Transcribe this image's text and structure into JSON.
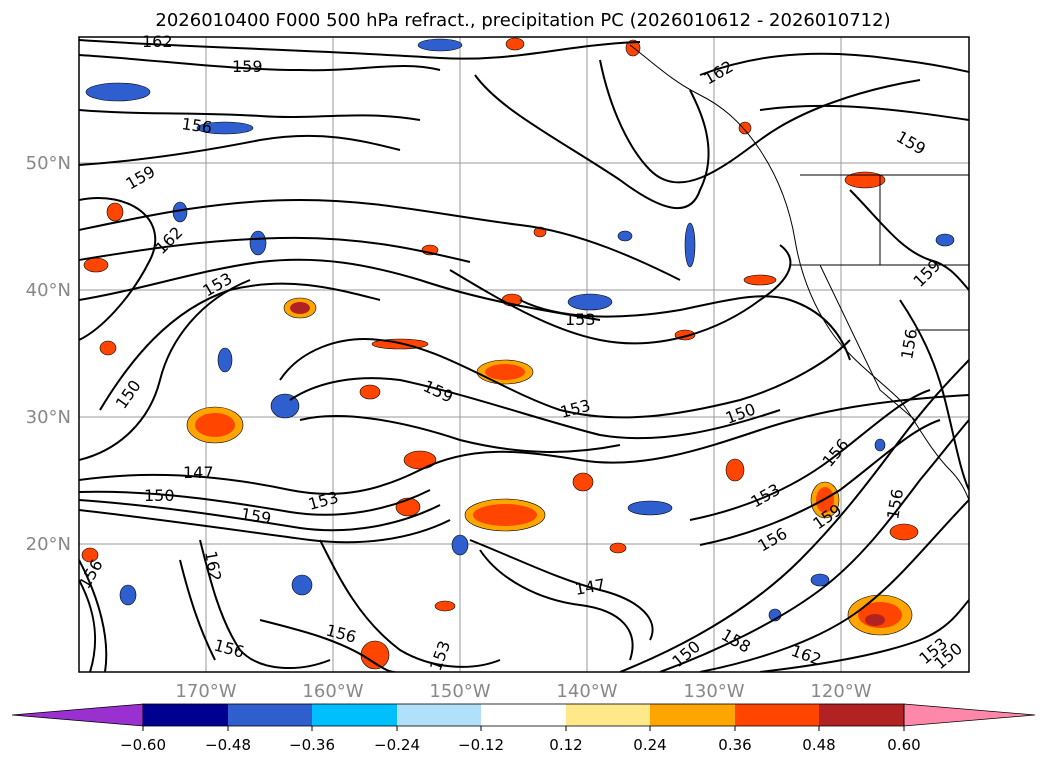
{
  "title": "2026010400 F000 500 hPa refract., precipitation PC (2026010612 - 2026010712)",
  "map": {
    "lat_labels": [
      "50°N",
      "40°N",
      "30°N",
      "20°N"
    ],
    "lon_labels": [
      "170°W",
      "160°W",
      "150°W",
      "140°W",
      "130°W",
      "120°W"
    ],
    "label_color": "#888888",
    "contour_color": "#000000"
  },
  "contour_labels": [
    "162",
    "159",
    "156",
    "159",
    "162",
    "153",
    "150",
    "147",
    "150",
    "159",
    "153",
    "159",
    "153",
    "153",
    "150",
    "153",
    "156",
    "156",
    "159",
    "162",
    "147",
    "156",
    "156",
    "158",
    "150",
    "162",
    "153",
    "150",
    "156",
    "159",
    "156",
    "162",
    "156",
    "153",
    "159"
  ],
  "colorbar": {
    "ticks": [
      "−0.60",
      "−0.48",
      "−0.36",
      "−0.24",
      "−0.12",
      "0.12",
      "0.24",
      "0.36",
      "0.48",
      "0.60"
    ],
    "colors": [
      "#9b30d0",
      "#000090",
      "#2f5fcf",
      "#00bfff",
      "#b0e0fa",
      "#ffffff",
      "#ffe88a",
      "#ffa500",
      "#ff4500",
      "#b22222",
      "#ff88aa"
    ]
  }
}
